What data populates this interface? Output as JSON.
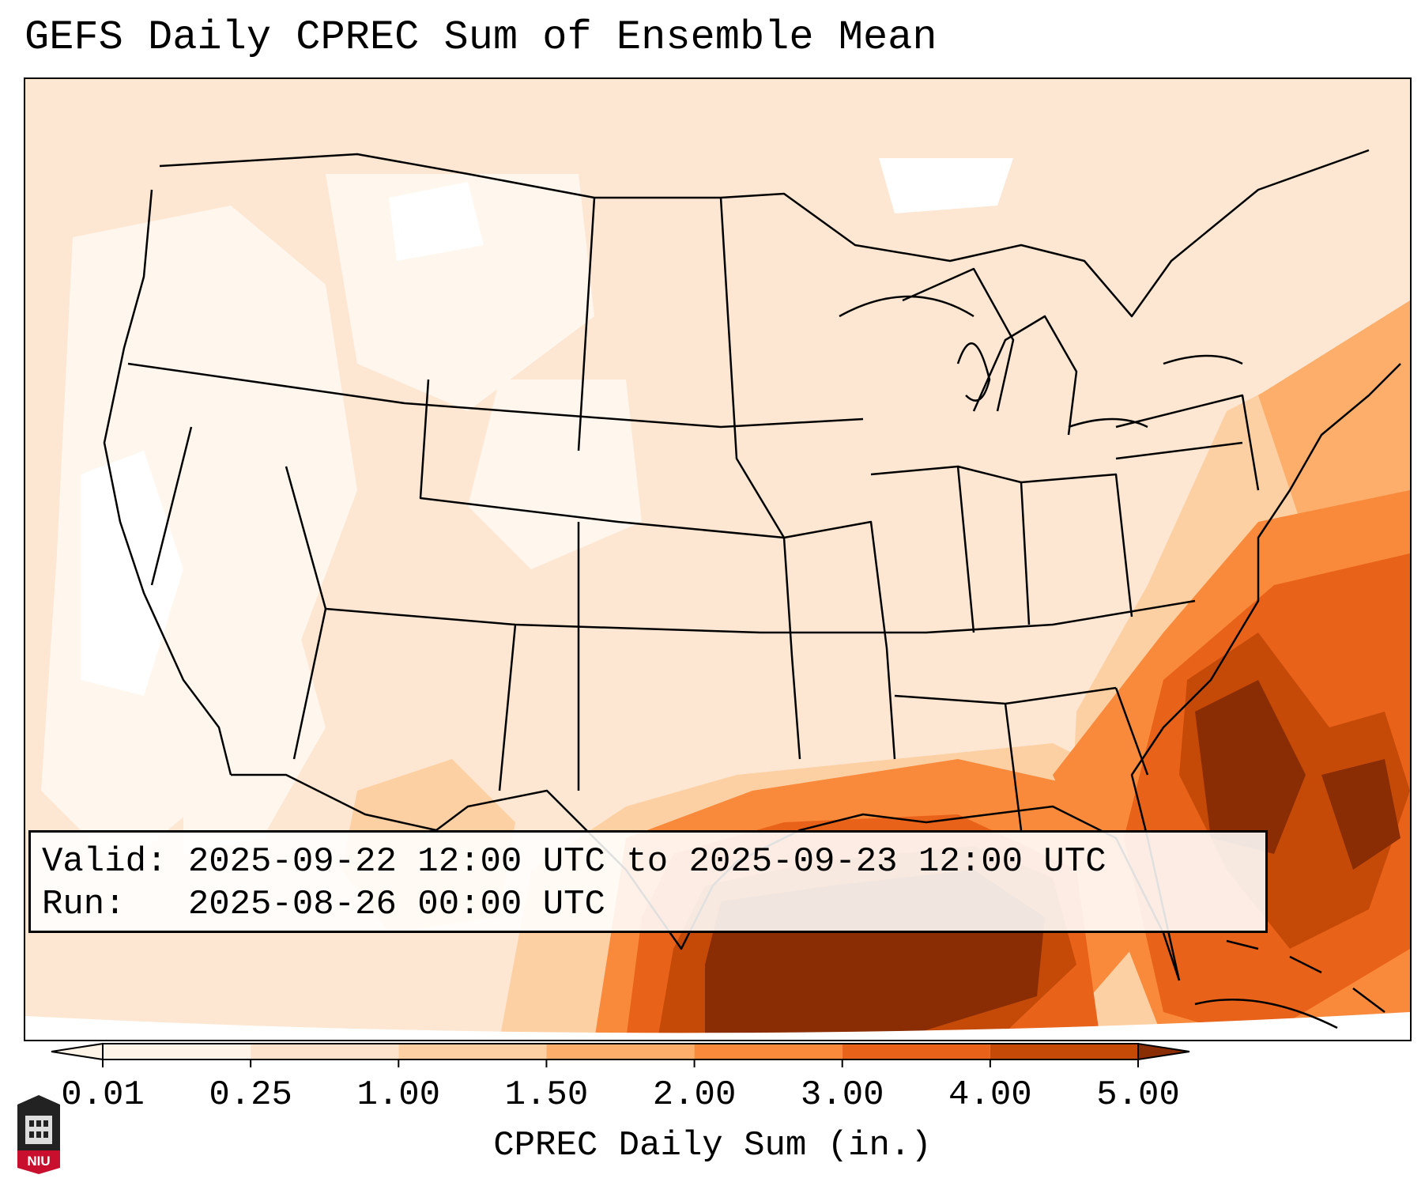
{
  "title": "GEFS Daily CPREC Sum of Ensemble Mean",
  "info": {
    "valid_label": "Valid:",
    "valid_value": "2025-09-22 12:00 UTC to 2025-09-23 12:00 UTC",
    "run_label": "Run:",
    "run_value": "2025-08-26 00:00 UTC"
  },
  "colorbar": {
    "label": "CPREC Daily Sum (in.)",
    "ticks": [
      "0.01",
      "0.25",
      "1.00",
      "1.50",
      "2.00",
      "3.00",
      "4.00",
      "5.00"
    ],
    "colors": [
      "#fff4e8",
      "#fde3cc",
      "#fdd0a4",
      "#fdae6b",
      "#f98a3c",
      "#e9621a",
      "#c64a07",
      "#8a2d04"
    ]
  },
  "logo": {
    "text": "NIU",
    "color": "#c8102e"
  },
  "map": {
    "projection": "Lambert conformal, CONUS",
    "background_color": "#fff4e8",
    "heavy_region": "Gulf of Mexico and western Atlantic off the Southeast coast"
  }
}
